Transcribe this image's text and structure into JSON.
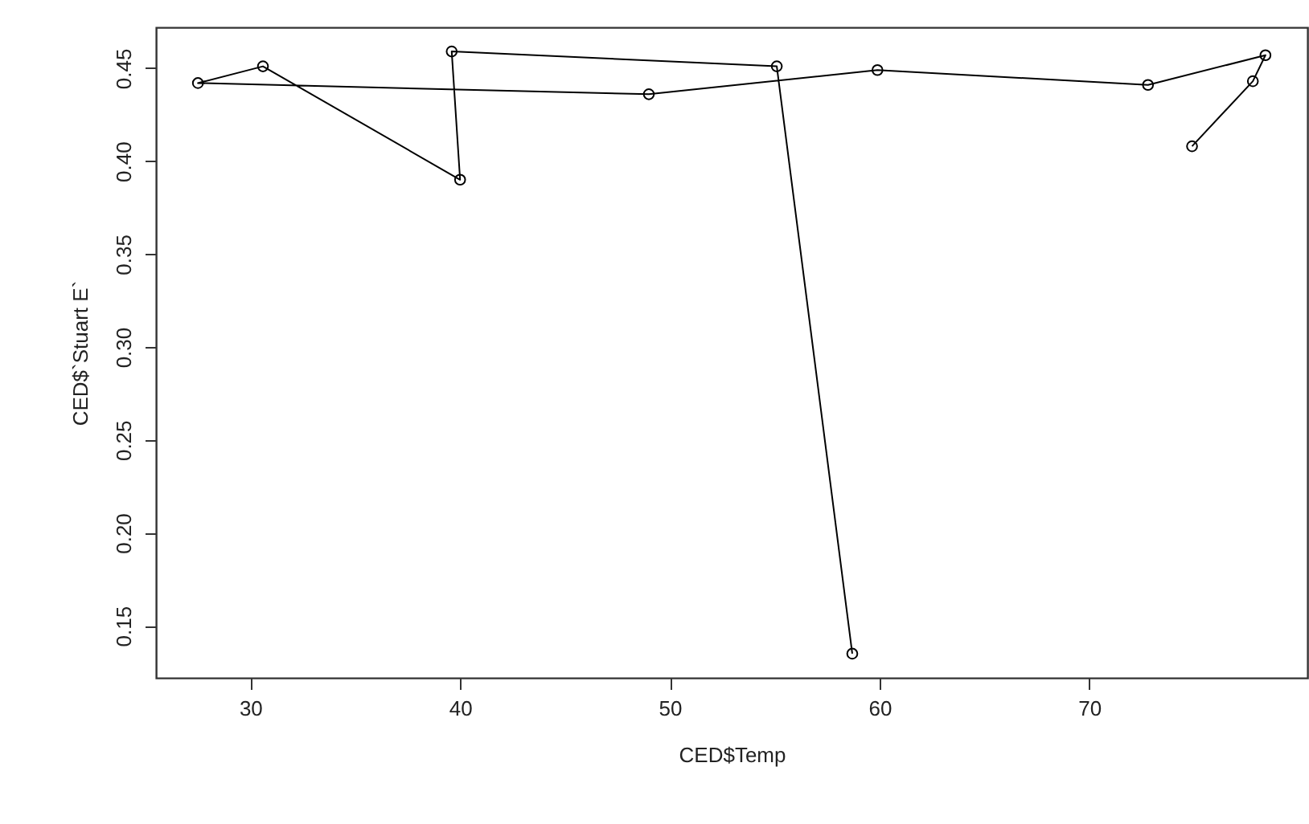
{
  "chart_data": {
    "type": "line",
    "xlabel": "CED$Temp",
    "ylabel": "CED$`Stuart E`",
    "x": [
      74.9,
      77.8,
      78.4,
      72.8,
      59.9,
      49.0,
      27.5,
      30.6,
      40.0,
      39.6,
      55.1,
      58.7
    ],
    "series": [
      {
        "color": "#000000",
        "values": [
          0.408,
          0.443,
          0.457,
          0.441,
          0.449,
          0.436,
          0.442,
          0.451,
          0.39,
          0.459,
          0.451,
          0.135
        ]
      }
    ],
    "xlim": [
      25.5,
      80.4
    ],
    "ylim": [
      0.122,
      0.472
    ],
    "xticks": [
      30,
      40,
      50,
      60,
      70
    ],
    "yticks": [
      {
        "value": 0.15,
        "label": "0.15"
      },
      {
        "value": 0.2,
        "label": "0.20"
      },
      {
        "value": 0.25,
        "label": "0.25"
      },
      {
        "value": 0.3,
        "label": "0.30"
      },
      {
        "value": 0.35,
        "label": "0.35"
      },
      {
        "value": 0.4,
        "label": "0.40"
      },
      {
        "value": 0.45,
        "label": "0.45"
      }
    ],
    "marker": "circle",
    "line_style": "solid",
    "grid": false
  }
}
